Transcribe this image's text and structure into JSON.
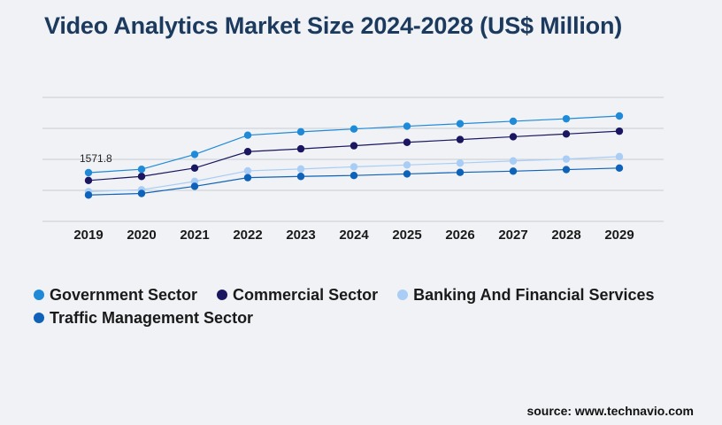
{
  "title": "Video Analytics Market Size 2024-2028 (US$ Million)",
  "source": "source: www.technavio.com",
  "chart_data": {
    "type": "line",
    "title": "Video Analytics Market Size 2024-2028 (US$ Million)",
    "xlabel": "",
    "ylabel": "",
    "categories": [
      "2019",
      "2020",
      "2021",
      "2022",
      "2023",
      "2024",
      "2025",
      "2026",
      "2027",
      "2028",
      "2029"
    ],
    "ylim": [
      0,
      5000
    ],
    "grid": true,
    "legend_position": "bottom",
    "annotations": [
      {
        "series": "Government Sector",
        "category": "2019",
        "text": "1571.8"
      }
    ],
    "series": [
      {
        "name": "Government Sector",
        "color": "#1f8ad8",
        "values": [
          1571.8,
          1680,
          2160,
          2780,
          2890,
          2980,
          3070,
          3150,
          3230,
          3310,
          3400
        ]
      },
      {
        "name": "Commercial Sector",
        "color": "#1a1660",
        "values": [
          1320,
          1450,
          1720,
          2250,
          2340,
          2440,
          2550,
          2640,
          2730,
          2820,
          2910
        ]
      },
      {
        "name": "Banking And Financial Services",
        "color": "#a9cdf5",
        "values": [
          960,
          1020,
          1290,
          1630,
          1690,
          1760,
          1820,
          1880,
          1950,
          2010,
          2090
        ]
      },
      {
        "name": "Traffic Management Sector",
        "color": "#0e62b8",
        "values": [
          850,
          900,
          1130,
          1410,
          1450,
          1480,
          1530,
          1580,
          1620,
          1670,
          1720
        ]
      }
    ]
  }
}
